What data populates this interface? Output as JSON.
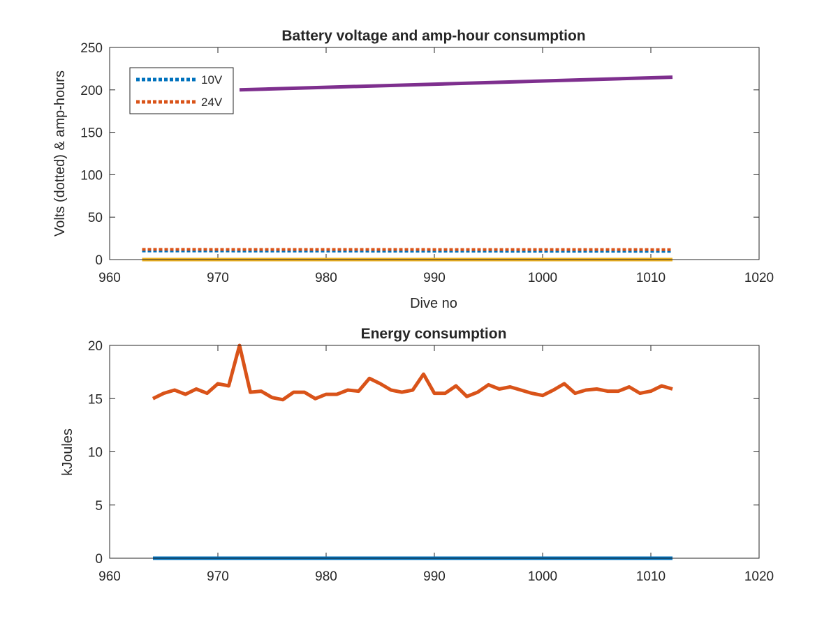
{
  "chart_data": [
    {
      "type": "line",
      "title": "Battery voltage and amp-hour consumption",
      "xlabel": "Dive no",
      "ylabel": "Volts (dotted) & amp-hours",
      "xlim": [
        960,
        1020
      ],
      "ylim": [
        0,
        250
      ],
      "xticks": [
        "960",
        "970",
        "980",
        "990",
        "1000",
        "1010",
        "1020"
      ],
      "yticks": [
        "0",
        "50",
        "100",
        "150",
        "200",
        "250"
      ],
      "grid": false,
      "legend_location": "top-left",
      "legend": [
        "10V",
        "24V"
      ],
      "series": [
        {
          "name": "10V",
          "style": "dotted",
          "color": "#0072BD",
          "x": [
            963,
            1012
          ],
          "y": [
            10.2,
            9.8
          ]
        },
        {
          "name": "24V",
          "style": "dotted",
          "color": "#D95319",
          "x": [
            963,
            1012
          ],
          "y": [
            12.0,
            11.8
          ]
        },
        {
          "style": "solid",
          "color": "#EDB120",
          "x": [
            963,
            1012
          ],
          "y": [
            0,
            0
          ]
        },
        {
          "style": "solid",
          "color": "#7E2F8E",
          "x": [
            972,
            1012
          ],
          "y": [
            200,
            215
          ]
        }
      ]
    },
    {
      "type": "line",
      "title": "Energy consumption",
      "xlabel": "",
      "ylabel": "kJoules",
      "xlim": [
        960,
        1020
      ],
      "ylim": [
        0,
        20
      ],
      "xticks": [
        "960",
        "970",
        "980",
        "990",
        "1000",
        "1010",
        "1020"
      ],
      "yticks": [
        "0",
        "5",
        "10",
        "15",
        "20"
      ],
      "grid": false,
      "series": [
        {
          "style": "solid",
          "color": "#0072BD",
          "x": [
            964,
            1012
          ],
          "y": [
            0,
            0
          ]
        },
        {
          "style": "solid",
          "color": "#D95319",
          "x": [
            964,
            965,
            966,
            967,
            968,
            969,
            970,
            971,
            972,
            973,
            974,
            975,
            976,
            977,
            978,
            979,
            980,
            981,
            982,
            983,
            984,
            985,
            986,
            987,
            988,
            989,
            990,
            991,
            992,
            993,
            994,
            995,
            996,
            997,
            998,
            999,
            1000,
            1001,
            1002,
            1003,
            1004,
            1005,
            1006,
            1007,
            1008,
            1009,
            1010,
            1011,
            1012
          ],
          "y": [
            15.0,
            15.5,
            15.8,
            15.4,
            15.9,
            15.5,
            16.4,
            16.2,
            20.0,
            15.6,
            15.7,
            15.1,
            14.9,
            15.6,
            15.6,
            15.0,
            15.4,
            15.4,
            15.8,
            15.7,
            16.9,
            16.4,
            15.8,
            15.6,
            15.8,
            17.3,
            15.5,
            15.5,
            16.2,
            15.2,
            15.6,
            16.3,
            15.9,
            16.1,
            15.8,
            15.5,
            15.3,
            15.8,
            16.4,
            15.5,
            15.8,
            15.9,
            15.7,
            15.7,
            16.1,
            15.5,
            15.7,
            16.2,
            15.9
          ]
        }
      ]
    }
  ]
}
